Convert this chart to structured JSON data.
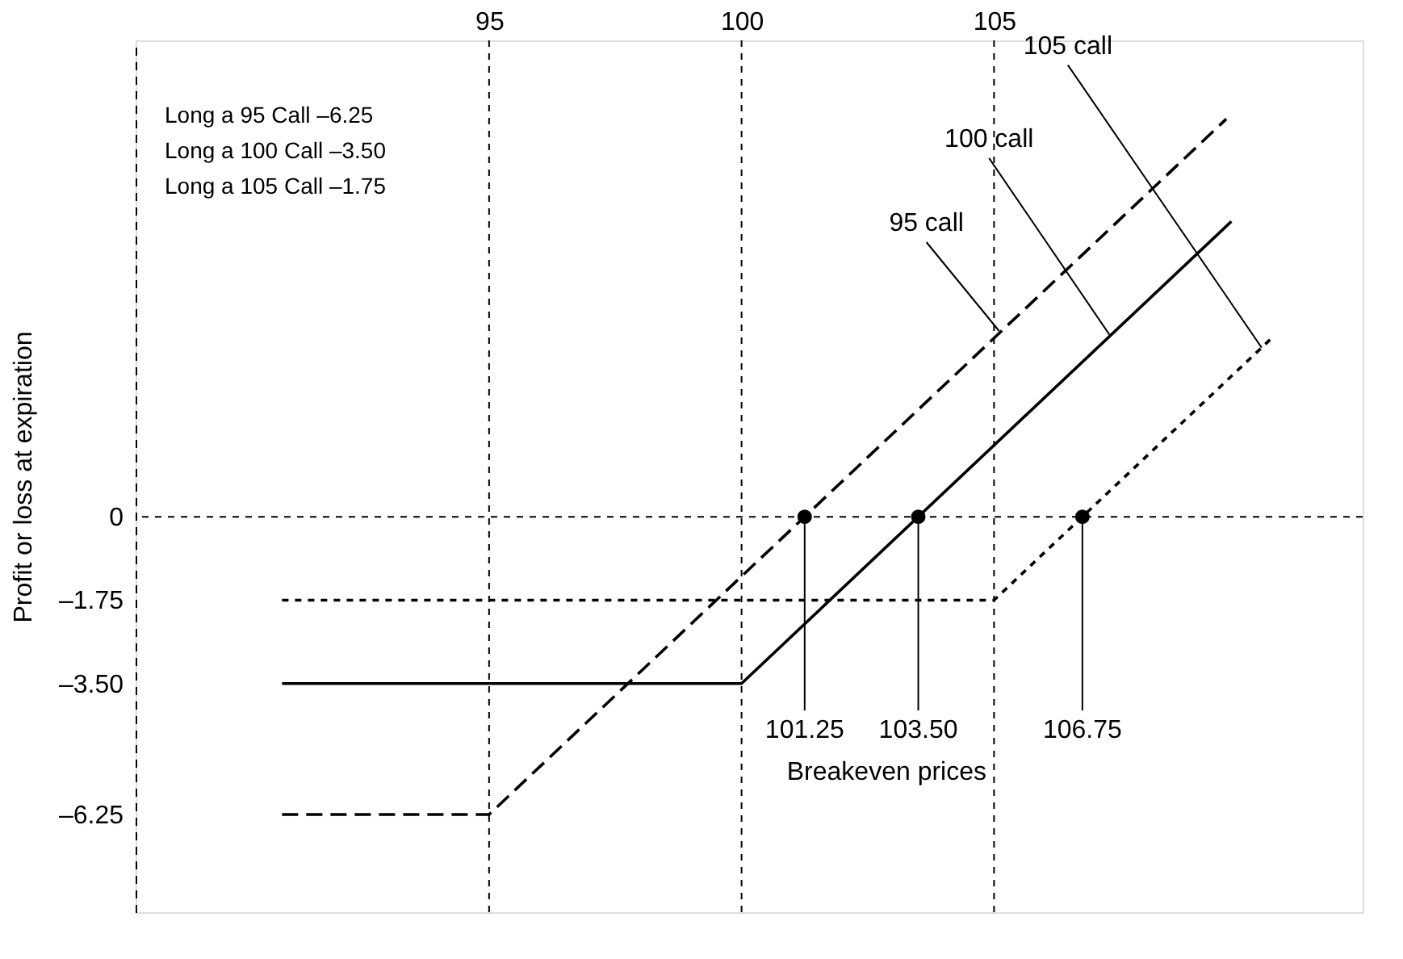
{
  "chart_data": {
    "type": "line",
    "ylabel": "Profit or loss at expiration",
    "xlim": [
      88,
      112.3
    ],
    "ylim": [
      -8.3,
      10
    ],
    "xticks": [
      95,
      100,
      105
    ],
    "yticks": [
      0,
      {
        "value": -1.75,
        "label": "–1.75"
      },
      {
        "value": -3.5,
        "label": "–3.50"
      },
      {
        "value": -6.25,
        "label": "–6.25"
      }
    ],
    "grid": false,
    "series": [
      {
        "line_style": "dashed",
        "color": "#000000",
        "x": [
          90.9,
          95,
          109.6
        ],
        "values": [
          -6.25,
          -6.25,
          8.35
        ]
      },
      {
        "line_style": "solid",
        "color": "#000000",
        "x": [
          90.9,
          100,
          109.7
        ],
        "values": [
          -3.5,
          -3.5,
          6.2
        ]
      },
      {
        "line_style": "dotted",
        "color": "#000000",
        "x": [
          90.9,
          105,
          110.5
        ],
        "values": [
          -1.75,
          -1.75,
          3.75
        ]
      },
      {
        "type": "scatter",
        "marker": "circle",
        "color": "#000000",
        "x": [
          101.25,
          103.5,
          106.75
        ],
        "values": [
          0,
          0,
          0
        ]
      }
    ],
    "ref_lines": [
      {
        "axis": "x",
        "value": 95,
        "line_style": "dotted"
      },
      {
        "axis": "x",
        "value": 100,
        "line_style": "dotted"
      },
      {
        "axis": "x",
        "value": 105,
        "line_style": "dotted"
      },
      {
        "axis": "y",
        "value": 0,
        "line_style": "dotted"
      }
    ],
    "annotations": [
      "Long a 95 Call –6.25",
      "Long a 100 Call –3.50",
      "Long a 105 Call –1.75",
      {
        "text": "95 call",
        "x": 105.1,
        "y": 3.9
      },
      {
        "text": "100 call",
        "x": 107.3,
        "y": 3.8
      },
      {
        "text": "105 call",
        "x": 110.3,
        "y": 3.55
      },
      {
        "text": "101.25",
        "x": 101.25,
        "y": 0
      },
      {
        "text": "103.50",
        "x": 103.5,
        "y": 0
      },
      {
        "text": "106.75",
        "x": 106.75,
        "y": 0
      },
      "Breakeven prices"
    ]
  }
}
